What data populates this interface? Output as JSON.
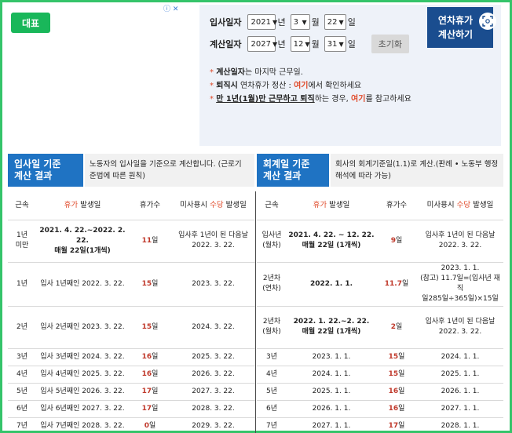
{
  "ad": {
    "info_icon": "ⓘ",
    "close_icon": "✕"
  },
  "rep_button": "대표",
  "form": {
    "join": {
      "label": "입사일자",
      "year": "2021",
      "year_unit": "년",
      "month": "3",
      "month_unit": "월",
      "day": "22",
      "day_unit": "일"
    },
    "calc": {
      "label": "계산일자",
      "year": "2027",
      "year_unit": "년",
      "month": "12",
      "month_unit": "월",
      "day": "31",
      "day_unit": "일"
    },
    "reset_label": "초기화",
    "submit_line1": "연차휴가",
    "submit_line2": "계산하기"
  },
  "notes": [
    {
      "star": "*",
      "bold": "계산일자",
      "rest": "는 마지막 근무일."
    },
    {
      "star": "*",
      "bold": "퇴직시",
      "mid": " 연차휴가 정산 : ",
      "link": "여기",
      "rest": "에서 확인하세요"
    },
    {
      "star": "*",
      "underline": "만 1년(1월)만 근무하고 퇴직",
      "mid": "하는 경우, ",
      "link": "여기",
      "rest": "를 참고하세요"
    }
  ],
  "left_section": {
    "title1": "입사일 기준",
    "title2": "계산 결과",
    "desc1": "노동자의 입사일을 기준으로 계산합니다. (근로기",
    "desc2": "준법에 따른 원칙)"
  },
  "right_section": {
    "title1": "회계일 기준",
    "title2": "계산 결과",
    "desc1": "회사의 회계기준일(1.1)로 계산.(판례 • 노동부 행정",
    "desc2": "해석에 따라 가능)"
  },
  "headers": {
    "service": "근속",
    "leave_pre": "휴가",
    "leave_post": " 발생일",
    "days": "휴가수",
    "unused_pre": "미사용시 ",
    "unused_hl": "수당",
    "unused_post": " 발생일"
  },
  "left_rows": [
    {
      "service": [
        "1년",
        "미만"
      ],
      "occur": [
        "2021. 4. 22.~2022. 2. 22.",
        "매월 22일(1개씩)"
      ],
      "occur_bold": true,
      "days": "11",
      "unit": "일",
      "pay": [
        "입사후 1년이 된 다음날",
        "2022. 3. 22."
      ]
    },
    {
      "service": [
        "1년"
      ],
      "occur": [
        "입사 1년째인 2022. 3. 22."
      ],
      "occur_bold": false,
      "days": "15",
      "unit": "일",
      "pay": [
        "2023. 3. 22."
      ]
    },
    {
      "service": [
        "2년"
      ],
      "occur": [
        "입사 2년째인 2023. 3. 22."
      ],
      "occur_bold": false,
      "days": "15",
      "unit": "일",
      "pay": [
        "2024. 3. 22."
      ]
    },
    {
      "service": [
        "3년"
      ],
      "occur": [
        "입사 3년째인 2024. 3. 22."
      ],
      "occur_bold": false,
      "days": "16",
      "unit": "일",
      "pay": [
        "2025. 3. 22."
      ]
    },
    {
      "service": [
        "4년"
      ],
      "occur": [
        "입사 4년째인 2025. 3. 22."
      ],
      "occur_bold": false,
      "days": "16",
      "unit": "일",
      "pay": [
        "2026. 3. 22."
      ]
    },
    {
      "service": [
        "5년"
      ],
      "occur": [
        "입사 5년째인 2026. 3. 22."
      ],
      "occur_bold": false,
      "days": "17",
      "unit": "일",
      "pay": [
        "2027. 3. 22."
      ]
    },
    {
      "service": [
        "6년"
      ],
      "occur": [
        "입사 6년째인 2027. 3. 22."
      ],
      "occur_bold": false,
      "days": "17",
      "unit": "일",
      "pay": [
        "2028. 3. 22."
      ]
    },
    {
      "service": [
        "7년"
      ],
      "occur": [
        "입사 7년째인 2028. 3. 22."
      ],
      "occur_bold": false,
      "days": "0",
      "unit": "일",
      "pay": [
        "2029. 3. 22."
      ]
    }
  ],
  "right_rows": [
    {
      "service": [
        "입사년",
        "(월차)"
      ],
      "occur": [
        "2021. 4. 22. ~ 12. 22.",
        "매월 22일 (1개씩)"
      ],
      "occur_bold": true,
      "days": "9",
      "unit": "일",
      "pay": [
        "입사후 1년이 된 다음날",
        "2022. 3. 22."
      ]
    },
    {
      "service": [
        "2년차",
        "(연차)"
      ],
      "occur": [
        "2022. 1. 1."
      ],
      "occur_bold": true,
      "days": "11.7",
      "unit": "일",
      "pay": [
        "2023. 1. 1.",
        "(참고) 11.7일=(입사년 재직",
        "일285일÷365일)×15일"
      ]
    },
    {
      "service": [
        "2년차",
        "(월차)"
      ],
      "occur": [
        "2022. 1. 22.~2. 22.",
        "매월 22일 (1개씩)"
      ],
      "occur_bold": true,
      "days": "2",
      "unit": "일",
      "pay": [
        "입사후 1년이 된 다음날",
        "2022. 3. 22."
      ]
    },
    {
      "service": [
        "3년"
      ],
      "occur": [
        "2023. 1. 1."
      ],
      "occur_bold": false,
      "days": "15",
      "unit": "일",
      "pay": [
        "2024. 1. 1."
      ]
    },
    {
      "service": [
        "4년"
      ],
      "occur": [
        "2024. 1. 1."
      ],
      "occur_bold": false,
      "days": "15",
      "unit": "일",
      "pay": [
        "2025. 1. 1."
      ]
    },
    {
      "service": [
        "5년"
      ],
      "occur": [
        "2025. 1. 1."
      ],
      "occur_bold": false,
      "days": "16",
      "unit": "일",
      "pay": [
        "2026. 1. 1."
      ]
    },
    {
      "service": [
        "6년"
      ],
      "occur": [
        "2026. 1. 1."
      ],
      "occur_bold": false,
      "days": "16",
      "unit": "일",
      "pay": [
        "2027. 1. 1."
      ]
    },
    {
      "service": [
        "7년"
      ],
      "occur": [
        "2027. 1. 1."
      ],
      "occur_bold": false,
      "days": "17",
      "unit": "일",
      "pay": [
        "2028. 1. 1."
      ]
    }
  ]
}
